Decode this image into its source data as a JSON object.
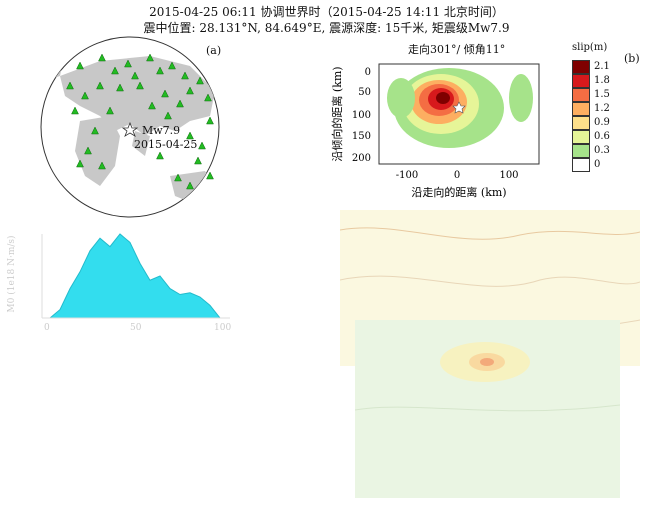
{
  "header": {
    "line1": "2015-04-25 06:11 协调世界时（2015-04-25 14:11 北京时间）",
    "line2": "震中位置: 28.131°N, 84.649°E, 震源深度: 15千米, 矩震级Mw7.9"
  },
  "panel_a": {
    "label": "(a)",
    "event_magnitude": "Mw7.9",
    "event_date": "2015-04-25"
  },
  "panel_b": {
    "label": "(b)",
    "title": "走向301°/ 倾角11°",
    "xlabel": "沿走向的距离 (km)",
    "ylabel": "沿倾向的距离 (km)",
    "xticks": [
      "-100",
      "0",
      "100"
    ],
    "yticks": [
      "0",
      "50",
      "100",
      "150",
      "200"
    ]
  },
  "colorbar": {
    "title": "slip(m)",
    "levels": [
      "2.1",
      "1.8",
      "1.5",
      "1.2",
      "0.9",
      "0.6",
      "0.3",
      "0"
    ],
    "colors": [
      "#7f0000",
      "#d7191c",
      "#f46d43",
      "#fdae61",
      "#fee08b",
      "#e6f598",
      "#a6e38a",
      "#ffffff"
    ]
  },
  "panel_c": {
    "ylabel": "M0 (1e18 N·m/s)",
    "xticks": [
      "0",
      "50",
      "100"
    ],
    "stf_values": [
      0,
      0.1,
      0.35,
      0.55,
      0.8,
      0.95,
      0.85,
      1.0,
      0.9,
      0.65,
      0.45,
      0.5,
      0.35,
      0.28,
      0.3,
      0.25,
      0.15,
      0.0
    ]
  },
  "colors": {
    "ocean": "#ffffff",
    "land": "#c8c8c8",
    "station": "#22bb22",
    "stf": "#33ddee"
  }
}
